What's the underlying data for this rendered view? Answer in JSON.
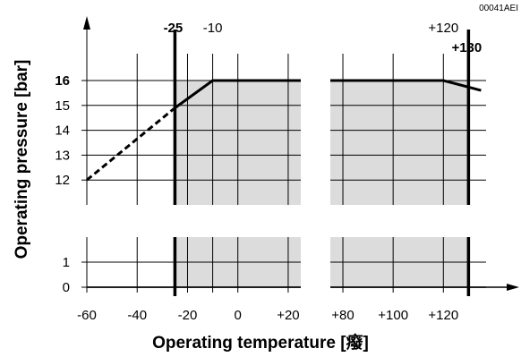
{
  "doc_code": "00041AEI",
  "chart_data": {
    "type": "line",
    "xlabel": "Operating temperature [癈]",
    "ylabel": "Operating pressure [bar]",
    "x_ticks": [
      "-60",
      "-40",
      "-20",
      "0",
      "+20",
      "+80",
      "+100",
      "+120"
    ],
    "x_tick_values": [
      -60,
      -40,
      -20,
      0,
      20,
      80,
      100,
      120
    ],
    "y_ticks": [
      "12",
      "13",
      "14",
      "15",
      "16",
      "0",
      "1"
    ],
    "y_tick_values": [
      12,
      13,
      14,
      15,
      16,
      0,
      1
    ],
    "top_labels": [
      {
        "text": "-25",
        "x": -25,
        "bold": true
      },
      {
        "text": "-10",
        "x": -10,
        "bold": false
      },
      {
        "text": "+120",
        "x": 120,
        "bold": false
      },
      {
        "text": "+130",
        "x": 130,
        "bold": true
      }
    ],
    "axis_breaks": {
      "x": [
        25,
        75
      ],
      "y": [
        2,
        11
      ]
    },
    "shaded_region": {
      "x": [
        -25,
        130
      ],
      "y": [
        0,
        16
      ]
    },
    "limit_lines_x": [
      -25,
      130
    ],
    "series": [
      {
        "style": "dashed",
        "points": [
          [
            -60,
            12
          ],
          [
            -25,
            14.9
          ]
        ]
      },
      {
        "style": "solid",
        "points": [
          [
            -25,
            14.9
          ],
          [
            -10,
            16
          ],
          [
            25,
            16
          ]
        ]
      },
      {
        "style": "solid",
        "points": [
          [
            75,
            16
          ],
          [
            120,
            16
          ],
          [
            135,
            15.6
          ]
        ]
      }
    ]
  }
}
